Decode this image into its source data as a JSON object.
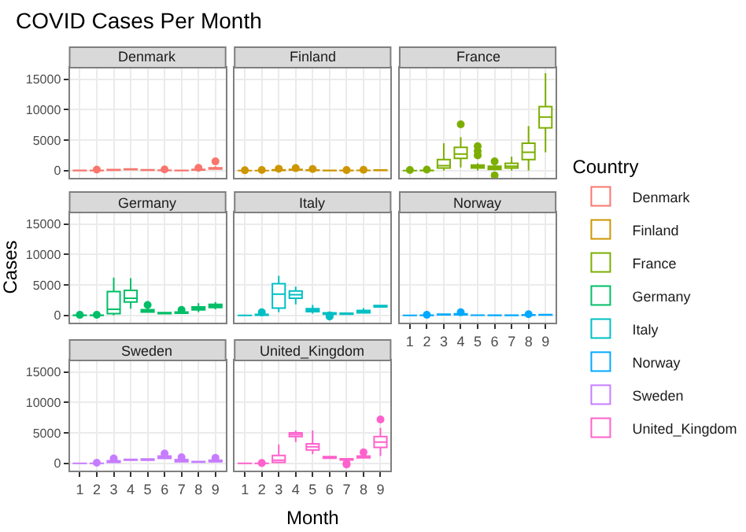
{
  "chart_data": [
    {
      "type": "box",
      "title": "COVID Cases Per Month",
      "subtitle": "Denmark",
      "legend_title": "Country",
      "legend": "right",
      "grid": true,
      "tick_labels": "y",
      "categories": [
        "1",
        "2",
        "3",
        "4",
        "5",
        "6",
        "7",
        "8",
        "9"
      ],
      "ylim": [
        -1200,
        16900
      ],
      "yticks": [
        0,
        5000,
        10000,
        15000
      ],
      "series": [
        {
          "name": "Denmark",
          "color": "#f8766d",
          "boxes": [
            {
              "low": 0,
              "q1": 0,
              "median": 5,
              "q3": 15,
              "high": 30
            },
            {
              "low": 0,
              "q1": 2,
              "median": 10,
              "q3": 30,
              "high": 70,
              "outliers": [
                150
              ]
            },
            {
              "low": 20,
              "q1": 60,
              "median": 100,
              "q3": 150,
              "high": 250
            },
            {
              "low": 100,
              "q1": 150,
              "median": 200,
              "q3": 250,
              "high": 350
            },
            {
              "low": 30,
              "q1": 60,
              "median": 90,
              "q3": 120,
              "high": 180
            },
            {
              "low": 10,
              "q1": 30,
              "median": 40,
              "q3": 60,
              "high": 100,
              "outliers": [
                200
              ]
            },
            {
              "low": 0,
              "q1": 10,
              "median": 20,
              "q3": 40,
              "high": 80
            },
            {
              "low": 40,
              "q1": 80,
              "median": 120,
              "q3": 180,
              "high": 300,
              "outliers": [
                450
              ]
            },
            {
              "low": 150,
              "q1": 250,
              "median": 350,
              "q3": 450,
              "high": 700,
              "outliers": [
                1500
              ]
            }
          ]
        }
      ]
    },
    {
      "type": "box",
      "subtitle": "Finland",
      "grid": true,
      "tick_labels": false,
      "categories": [
        "1",
        "2",
        "3",
        "4",
        "5",
        "6",
        "7",
        "8",
        "9"
      ],
      "ylim": [
        -1200,
        16900
      ],
      "yticks": [
        0,
        5000,
        10000,
        15000
      ],
      "series": [
        {
          "name": "Finland",
          "color": "#cd9600",
          "boxes": [
            {
              "low": 0,
              "q1": 0,
              "median": 2,
              "q3": 5,
              "high": 10,
              "outliers": [
                50
              ]
            },
            {
              "low": 0,
              "q1": 0,
              "median": 2,
              "q3": 5,
              "high": 10,
              "outliers": [
                100
              ]
            },
            {
              "low": 20,
              "q1": 40,
              "median": 80,
              "q3": 130,
              "high": 250,
              "outliers": [
                300
              ]
            },
            {
              "low": 50,
              "q1": 100,
              "median": 150,
              "q3": 200,
              "high": 300,
              "outliers": [
                400
              ]
            },
            {
              "low": 20,
              "q1": 40,
              "median": 60,
              "q3": 90,
              "high": 150,
              "outliers": [
                250
              ]
            },
            {
              "low": 0,
              "q1": 10,
              "median": 20,
              "q3": 30,
              "high": 50
            },
            {
              "low": 0,
              "q1": 5,
              "median": 10,
              "q3": 20,
              "high": 40,
              "outliers": [
                80
              ]
            },
            {
              "low": 10,
              "q1": 20,
              "median": 30,
              "q3": 40,
              "high": 60,
              "outliers": [
                120
              ]
            },
            {
              "low": 20,
              "q1": 40,
              "median": 60,
              "q3": 80,
              "high": 120
            }
          ]
        }
      ]
    },
    {
      "type": "box",
      "subtitle": "France",
      "grid": true,
      "tick_labels": false,
      "categories": [
        "1",
        "2",
        "3",
        "4",
        "5",
        "6",
        "7",
        "8",
        "9"
      ],
      "ylim": [
        -1200,
        16900
      ],
      "yticks": [
        0,
        5000,
        10000,
        15000
      ],
      "series": [
        {
          "name": "France",
          "color": "#7cae00",
          "boxes": [
            {
              "low": 0,
              "q1": 0,
              "median": 5,
              "q3": 10,
              "high": 20,
              "outliers": [
                100
              ]
            },
            {
              "low": 0,
              "q1": 0,
              "median": 5,
              "q3": 20,
              "high": 40,
              "outliers": [
                150
              ]
            },
            {
              "low": 0,
              "q1": 400,
              "median": 800,
              "q3": 1800,
              "high": 4500
            },
            {
              "low": 500,
              "q1": 2000,
              "median": 2700,
              "q3": 3800,
              "high": 5500,
              "outliers": [
                7600
              ]
            },
            {
              "low": 0,
              "q1": 400,
              "median": 600,
              "q3": 900,
              "high": 1200,
              "outliers": [
                2500,
                3200,
                4000
              ]
            },
            {
              "low": 0,
              "q1": 200,
              "median": 400,
              "q3": 700,
              "high": 1000,
              "outliers": [
                -800,
                1500
              ]
            },
            {
              "low": 0,
              "q1": 400,
              "median": 700,
              "q3": 1200,
              "high": 2300
            },
            {
              "low": 0,
              "q1": 1800,
              "median": 3000,
              "q3": 4500,
              "high": 7300
            },
            {
              "low": 3000,
              "q1": 7000,
              "median": 8800,
              "q3": 10500,
              "high": 16000
            }
          ]
        }
      ]
    },
    {
      "type": "box",
      "subtitle": "Germany",
      "ylabel": "Cases",
      "grid": true,
      "tick_labels": "y",
      "categories": [
        "1",
        "2",
        "3",
        "4",
        "5",
        "6",
        "7",
        "8",
        "9"
      ],
      "ylim": [
        -1200,
        16900
      ],
      "yticks": [
        0,
        5000,
        10000,
        15000
      ],
      "series": [
        {
          "name": "Germany",
          "color": "#00be67",
          "boxes": [
            {
              "low": 0,
              "q1": 0,
              "median": 5,
              "q3": 15,
              "high": 30,
              "outliers": [
                80
              ]
            },
            {
              "low": 0,
              "q1": 0,
              "median": 5,
              "q3": 20,
              "high": 40,
              "outliers": [
                100
              ]
            },
            {
              "low": 0,
              "q1": 300,
              "median": 1000,
              "q3": 3900,
              "high": 6200
            },
            {
              "low": 1100,
              "q1": 2200,
              "median": 2800,
              "q3": 4100,
              "high": 6100
            },
            {
              "low": 550,
              "q1": 550,
              "median": 750,
              "q3": 950,
              "high": 1300,
              "outliers": [
                1700
              ]
            },
            {
              "low": 300,
              "q1": 300,
              "median": 380,
              "q3": 450,
              "high": 450
            },
            {
              "low": 350,
              "q1": 350,
              "median": 450,
              "q3": 550,
              "high": 550,
              "outliers": [
                900
              ]
            },
            {
              "low": 500,
              "q1": 900,
              "median": 1100,
              "q3": 1400,
              "high": 2000
            },
            {
              "low": 1000,
              "q1": 1300,
              "median": 1500,
              "q3": 1800,
              "high": 2200
            }
          ]
        }
      ]
    },
    {
      "type": "box",
      "subtitle": "Italy",
      "grid": true,
      "tick_labels": false,
      "categories": [
        "1",
        "2",
        "3",
        "4",
        "5",
        "6",
        "7",
        "8",
        "9"
      ],
      "ylim": [
        -1200,
        16900
      ],
      "yticks": [
        0,
        5000,
        10000,
        15000
      ],
      "series": [
        {
          "name": "Italy",
          "color": "#00bfc4",
          "boxes": [
            {
              "low": 0,
              "q1": 0,
              "median": 2,
              "q3": 5,
              "high": 10
            },
            {
              "low": 0,
              "q1": 20,
              "median": 50,
              "q3": 150,
              "high": 300,
              "outliers": [
                500
              ]
            },
            {
              "low": 500,
              "q1": 1200,
              "median": 3500,
              "q3": 5200,
              "high": 6500
            },
            {
              "low": 1800,
              "q1": 2800,
              "median": 3400,
              "q3": 4000,
              "high": 4700
            },
            {
              "low": 300,
              "q1": 600,
              "median": 800,
              "q3": 1100,
              "high": 1700
            },
            {
              "low": 200,
              "q1": 200,
              "median": 300,
              "q3": 400,
              "high": 400,
              "outliers": [
                -200,
                0
              ]
            },
            {
              "low": 200,
              "q1": 200,
              "median": 250,
              "q3": 350,
              "high": 350
            },
            {
              "low": 400,
              "q1": 400,
              "median": 600,
              "q3": 800,
              "high": 1200
            },
            {
              "low": 1400,
              "q1": 1400,
              "median": 1500,
              "q3": 1600,
              "high": 1600
            }
          ]
        }
      ]
    },
    {
      "type": "box",
      "subtitle": "Norway",
      "grid": true,
      "tick_labels": "x",
      "categories": [
        "1",
        "2",
        "3",
        "4",
        "5",
        "6",
        "7",
        "8",
        "9"
      ],
      "ylim": [
        -1200,
        16900
      ],
      "yticks": [
        0,
        5000,
        10000,
        15000
      ],
      "series": [
        {
          "name": "Norway",
          "color": "#00a9ff",
          "boxes": [
            {
              "low": 0,
              "q1": 0,
              "median": 5,
              "q3": 10,
              "high": 20
            },
            {
              "low": 0,
              "q1": 10,
              "median": 20,
              "q3": 40,
              "high": 80,
              "outliers": [
                100
              ]
            },
            {
              "low": 50,
              "q1": 100,
              "median": 150,
              "q3": 200,
              "high": 300
            },
            {
              "low": 50,
              "q1": 100,
              "median": 150,
              "q3": 250,
              "high": 400,
              "outliers": [
                500
              ]
            },
            {
              "low": 10,
              "q1": 20,
              "median": 30,
              "q3": 40,
              "high": 60
            },
            {
              "low": 5,
              "q1": 10,
              "median": 15,
              "q3": 20,
              "high": 30
            },
            {
              "low": 5,
              "q1": 10,
              "median": 15,
              "q3": 20,
              "high": 30
            },
            {
              "low": 20,
              "q1": 40,
              "median": 60,
              "q3": 80,
              "high": 120,
              "outliers": [
                200
              ]
            },
            {
              "low": 40,
              "q1": 70,
              "median": 100,
              "q3": 130,
              "high": 200
            }
          ]
        }
      ]
    },
    {
      "type": "box",
      "subtitle": "Sweden",
      "grid": true,
      "categories": [
        "1",
        "2",
        "3",
        "4",
        "5",
        "6",
        "7",
        "8",
        "9"
      ],
      "ylim": [
        -1200,
        16900
      ],
      "yticks": [
        0,
        5000,
        10000,
        15000
      ],
      "series": [
        {
          "name": "Sweden",
          "color": "#c77cff",
          "boxes": [
            {
              "low": 0,
              "q1": 0,
              "median": 1,
              "q3": 3,
              "high": 5
            },
            {
              "low": 0,
              "q1": 2,
              "median": 5,
              "q3": 10,
              "high": 20,
              "outliers": [
                100
              ]
            },
            {
              "low": 150,
              "q1": 150,
              "median": 250,
              "q3": 400,
              "high": 400,
              "outliers": [
                800
              ]
            },
            {
              "low": 500,
              "q1": 500,
              "median": 550,
              "q3": 650,
              "high": 650
            },
            {
              "low": 500,
              "q1": 500,
              "median": 600,
              "q3": 700,
              "high": 700
            },
            {
              "low": 800,
              "q1": 800,
              "median": 1000,
              "q3": 1200,
              "high": 1200,
              "outliers": [
                1600
              ]
            },
            {
              "low": 250,
              "q1": 250,
              "median": 400,
              "q3": 600,
              "high": 900,
              "outliers": [
                1000
              ]
            },
            {
              "low": 200,
              "q1": 200,
              "median": 250,
              "q3": 300,
              "high": 300
            },
            {
              "low": 250,
              "q1": 250,
              "median": 350,
              "q3": 500,
              "high": 800,
              "outliers": [
                900
              ]
            }
          ]
        }
      ]
    },
    {
      "type": "box",
      "subtitle": "United_Kingdom",
      "xlabel": "Month",
      "grid": true,
      "tick_labels": "x",
      "categories": [
        "1",
        "2",
        "3",
        "4",
        "5",
        "6",
        "7",
        "8",
        "9"
      ],
      "ylim": [
        -1200,
        16900
      ],
      "yticks": [
        0,
        5000,
        10000,
        15000
      ],
      "series": [
        {
          "name": "United_Kingdom",
          "color": "#ff61cc",
          "boxes": [
            {
              "low": 0,
              "q1": 0,
              "median": 1,
              "q3": 2,
              "high": 3
            },
            {
              "low": 0,
              "q1": 2,
              "median": 5,
              "q3": 10,
              "high": 20,
              "outliers": [
                50
              ]
            },
            {
              "low": 0,
              "q1": 150,
              "median": 500,
              "q3": 1300,
              "high": 3100
            },
            {
              "low": 3500,
              "q1": 4400,
              "median": 4700,
              "q3": 5000,
              "high": 5400
            },
            {
              "low": 1500,
              "q1": 2200,
              "median": 2700,
              "q3": 3200,
              "high": 5400
            },
            {
              "low": 850,
              "q1": 850,
              "median": 1000,
              "q3": 1100,
              "high": 1100
            },
            {
              "low": 550,
              "q1": 550,
              "median": 650,
              "q3": 750,
              "high": 750,
              "outliers": [
                0,
                -200
              ]
            },
            {
              "low": 900,
              "q1": 900,
              "median": 1100,
              "q3": 1200,
              "high": 1200,
              "outliers": [
                1800
              ]
            },
            {
              "low": 1200,
              "q1": 2600,
              "median": 3500,
              "q3": 4400,
              "high": 5800,
              "outliers": [
                7200
              ]
            }
          ]
        }
      ]
    }
  ]
}
